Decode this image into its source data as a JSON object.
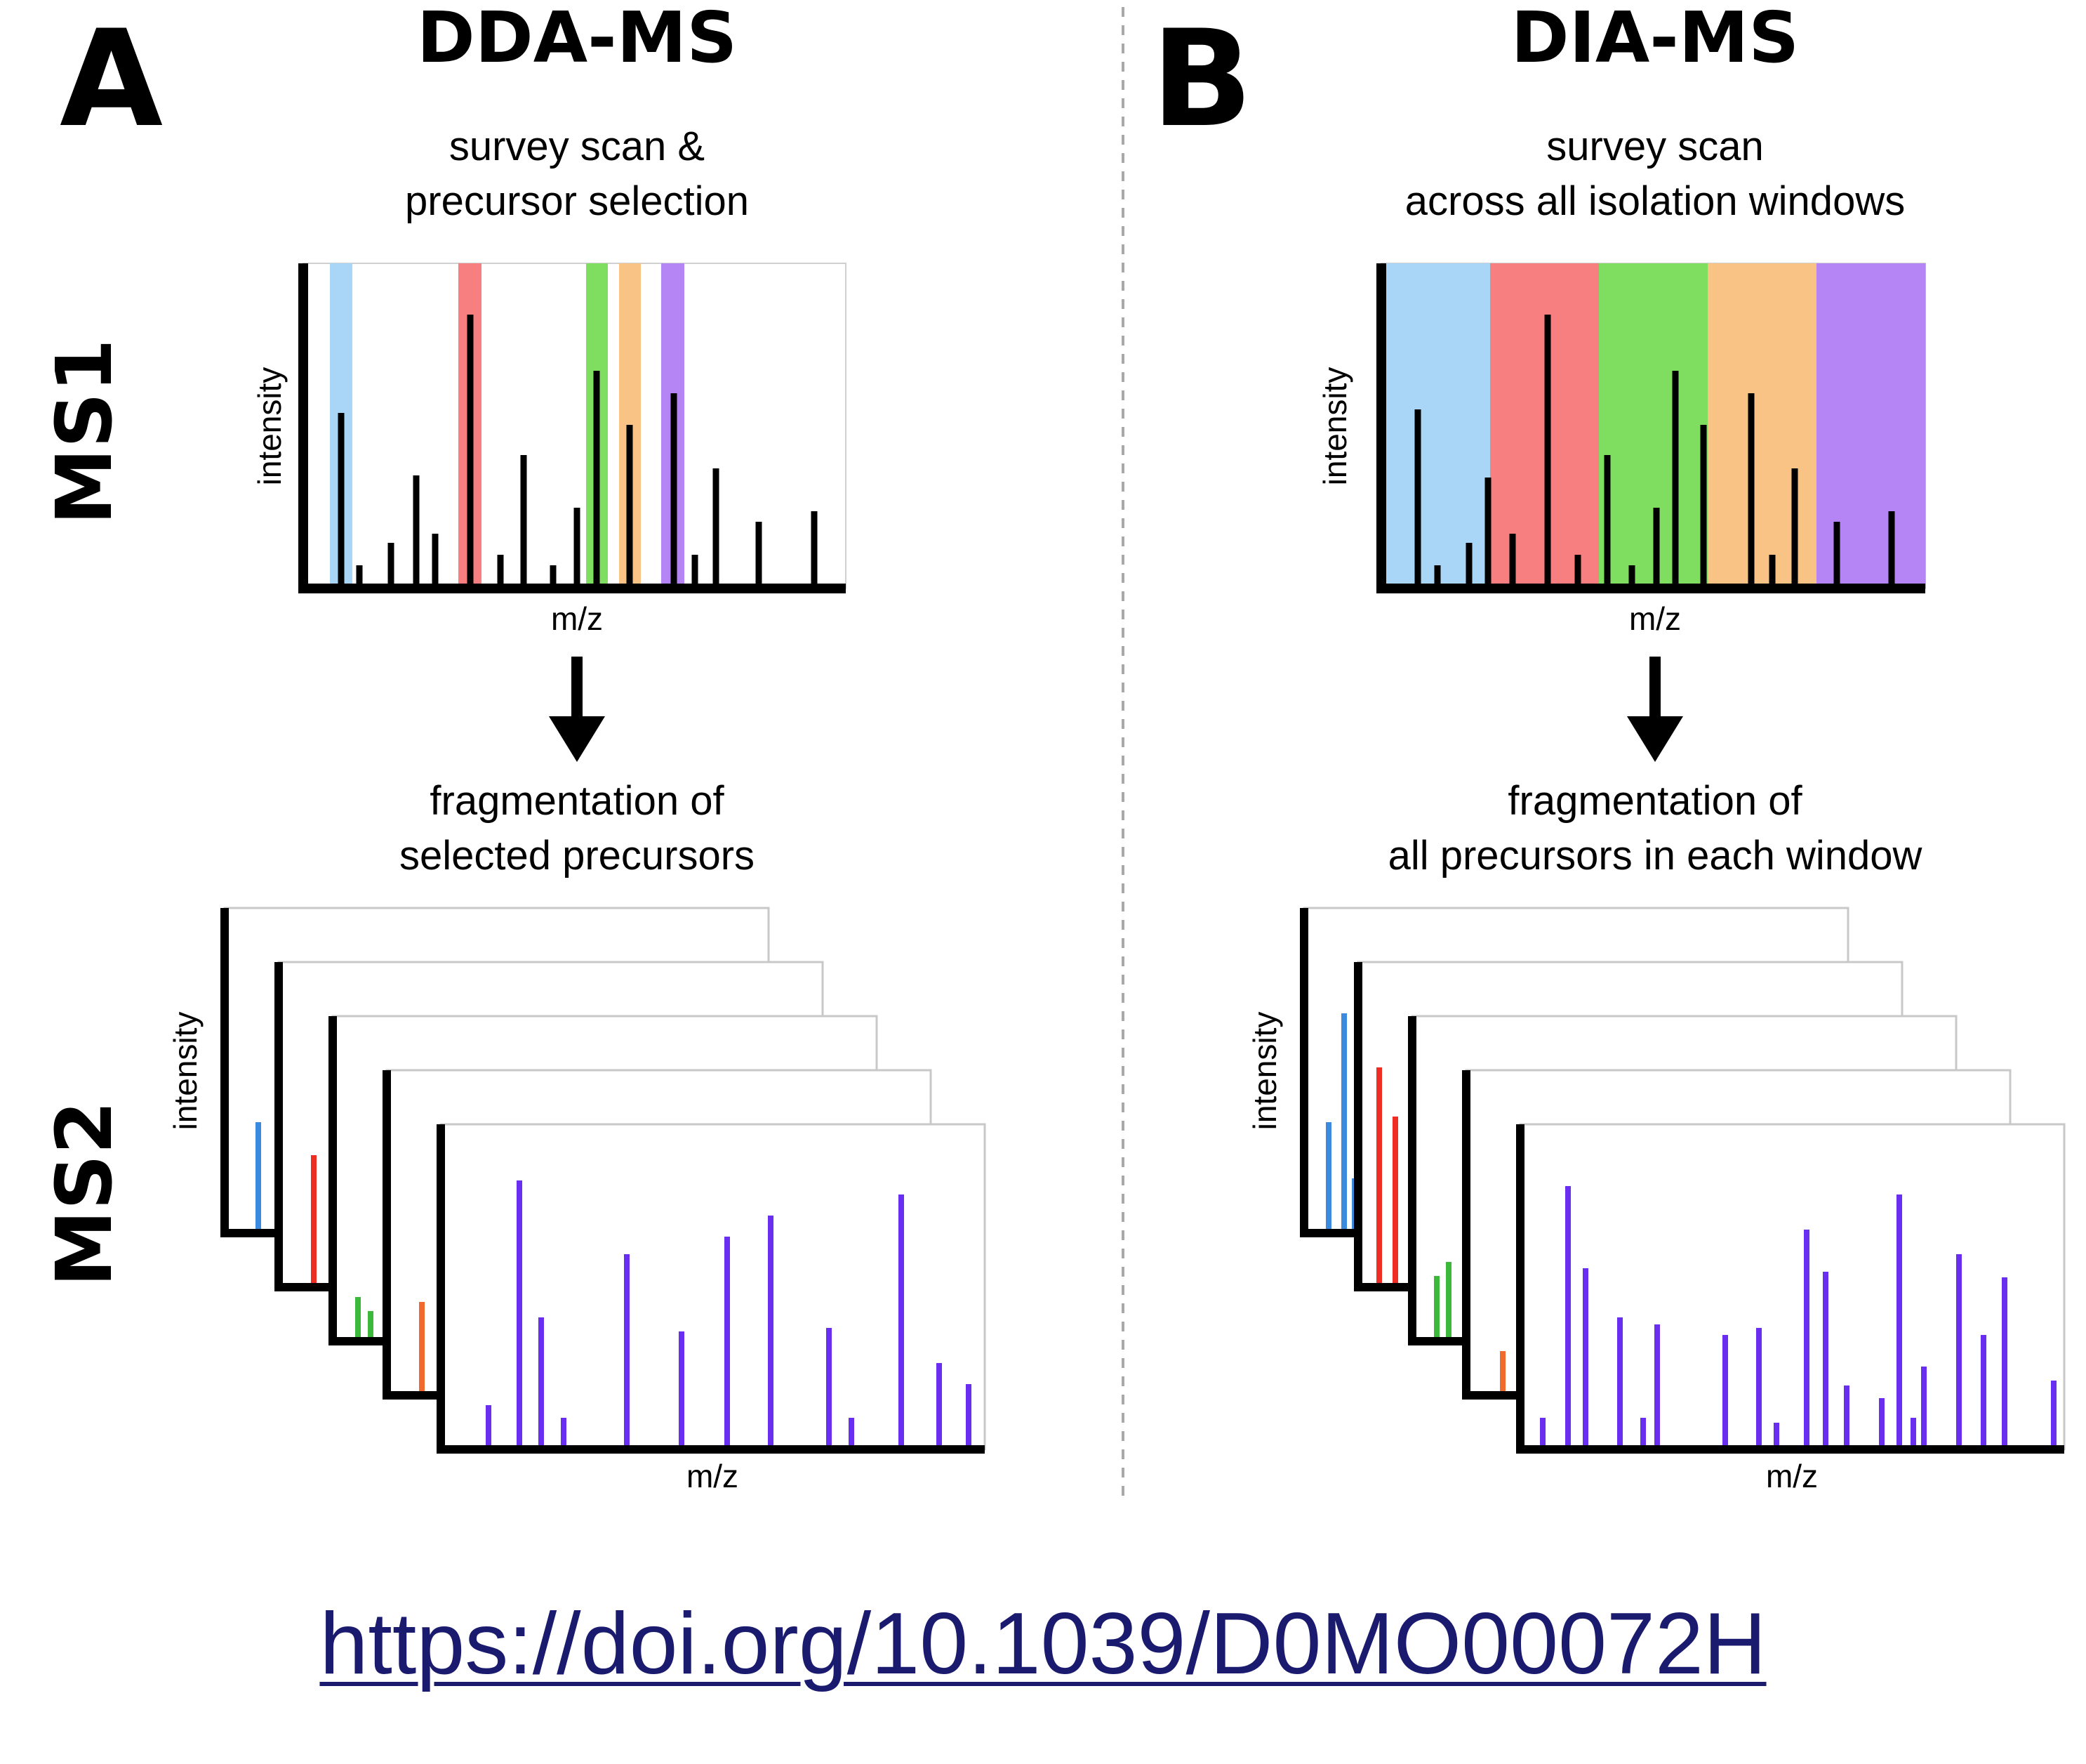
{
  "panel_a": {
    "letter": "A",
    "title": "DDA-MS",
    "ms1_caption": [
      "survey scan &",
      "precursor selection"
    ],
    "ms2_caption": [
      "fragmentation of",
      "selected precursors"
    ]
  },
  "panel_b": {
    "letter": "B",
    "title": "DIA-MS",
    "ms1_caption": [
      "survey scan",
      "across all isolation windows"
    ],
    "ms2_caption": [
      "fragmentation of",
      "all precursors in each window"
    ]
  },
  "row_labels": {
    "ms1": "MS1",
    "ms2": "MS2"
  },
  "axis": {
    "y": "intensity",
    "x": "m/z"
  },
  "doi_link": "https://doi.org/10.1039/D0MO00072H",
  "colors": {
    "blue": "#a9d6f7",
    "red": "#f77f7f",
    "green": "#7fde5f",
    "orange": "#f9c385",
    "purple": "#b585f5",
    "blue_line": "#3b8ae0",
    "red_line": "#ee2d24",
    "green_line": "#3cb83a",
    "orange_line": "#f06a2e",
    "purple_line": "#6a2ef0"
  }
}
